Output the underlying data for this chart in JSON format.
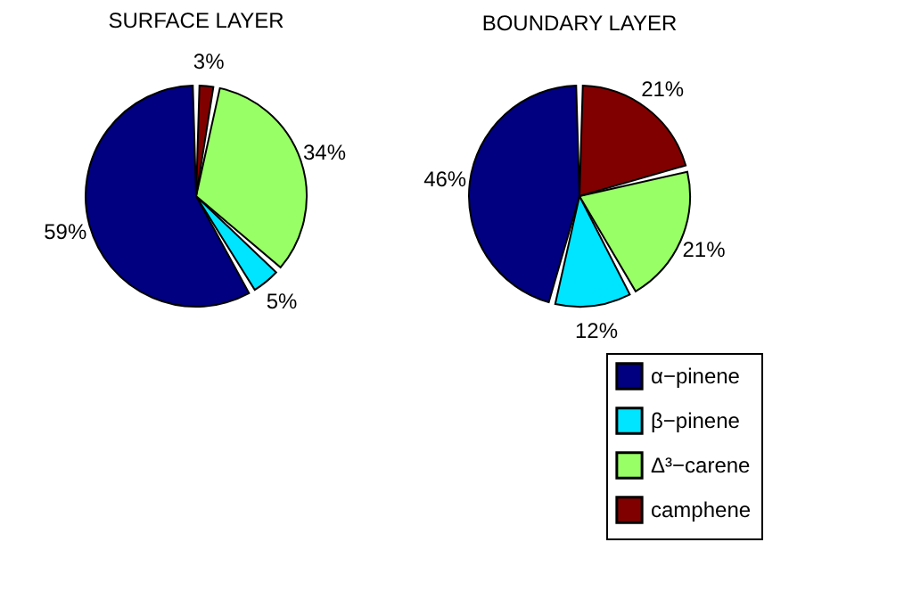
{
  "chart_data": [
    {
      "type": "pie",
      "title": "SURFACE LAYER",
      "categories": [
        null,
        null,
        null,
        null
      ],
      "values": [
        59,
        5,
        34,
        3
      ],
      "value_labels": [
        "59%",
        "5%",
        "34%",
        "3%"
      ],
      "colors": [
        "#000080",
        "#00e5ff",
        "#99ff66",
        "#800000"
      ],
      "legend": false
    },
    {
      "type": "pie",
      "title": "BOUNDARY LAYER",
      "categories": [
        "α−pinene",
        "β−pinene",
        "Δ³−carene",
        "camphene"
      ],
      "values": [
        46,
        12,
        21,
        21
      ],
      "value_labels": [
        "46%",
        "12%",
        "21%",
        "21%"
      ],
      "colors": [
        "#000080",
        "#00e5ff",
        "#99ff66",
        "#800000"
      ],
      "legend": "bottom right"
    }
  ]
}
